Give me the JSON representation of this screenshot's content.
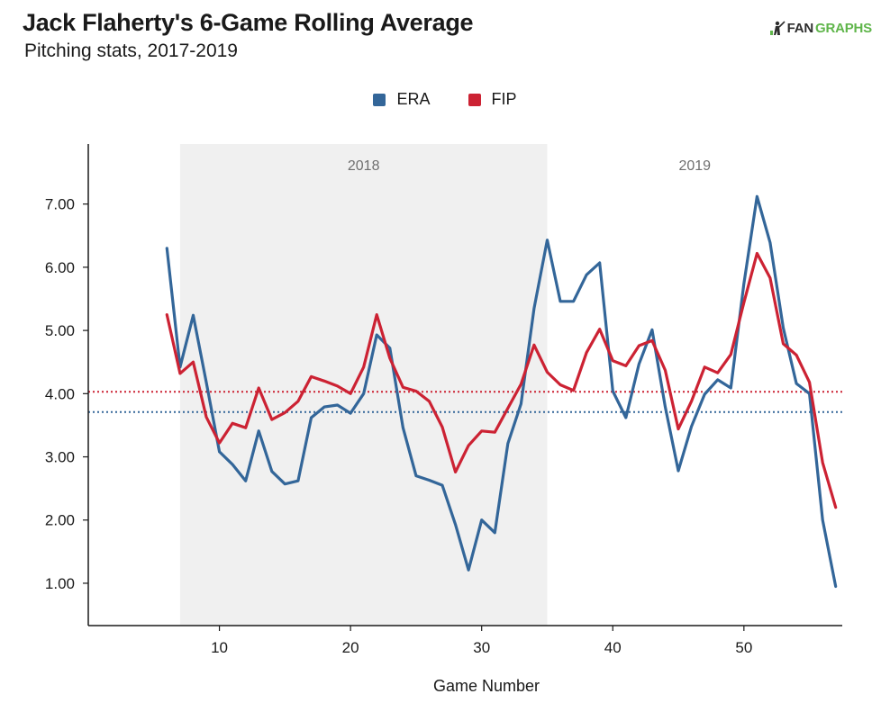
{
  "header": {
    "title": "Jack Flaherty's 6-Game Rolling Average",
    "subtitle": "Pitching stats, 2017-2019",
    "brand_prefix": "FAN",
    "brand_suffix": "GRAPHS"
  },
  "chart_data": {
    "type": "line",
    "title": "Jack Flaherty's 6-Game Rolling Average",
    "subtitle": "Pitching stats, 2017-2019",
    "xlabel": "Game Number",
    "ylabel": "",
    "xlim": [
      0,
      57.5
    ],
    "ylim": [
      0.33,
      7.95
    ],
    "xticks": [
      10,
      20,
      30,
      40,
      50
    ],
    "yticks": [
      1,
      2,
      3,
      4,
      5,
      6,
      7
    ],
    "ytick_labels": [
      "1.00",
      "2.00",
      "3.00",
      "4.00",
      "5.00",
      "6.00",
      "7.00"
    ],
    "legend_position": "top-center",
    "grid": false,
    "bands": [
      {
        "label": "2018",
        "x_start": 7,
        "x_end": 35,
        "shaded": true
      },
      {
        "label": "2019",
        "x_start": 35,
        "x_end": 57.5,
        "shaded": false
      }
    ],
    "reference_lines": [
      {
        "series": "ERA",
        "y": 3.71,
        "style": "dotted"
      },
      {
        "series": "FIP",
        "y": 4.03,
        "style": "dotted"
      }
    ],
    "x": [
      6,
      7,
      8,
      9,
      10,
      11,
      12,
      13,
      14,
      15,
      16,
      17,
      18,
      19,
      20,
      21,
      22,
      23,
      24,
      25,
      26,
      27,
      28,
      29,
      30,
      31,
      32,
      33,
      34,
      35,
      36,
      37,
      38,
      39,
      40,
      41,
      42,
      43,
      44,
      45,
      46,
      47,
      48,
      49,
      50,
      51,
      52,
      53,
      54,
      55,
      56,
      57
    ],
    "series": [
      {
        "name": "ERA",
        "color": "#336699",
        "values": [
          6.3,
          4.42,
          5.24,
          4.18,
          3.08,
          2.88,
          2.62,
          3.41,
          2.77,
          2.57,
          2.62,
          3.62,
          3.79,
          3.82,
          3.69,
          4.0,
          4.93,
          4.72,
          3.46,
          2.7,
          2.63,
          2.55,
          1.93,
          1.21,
          2.0,
          1.8,
          3.21,
          3.84,
          5.35,
          6.43,
          5.46,
          5.46,
          5.88,
          6.07,
          4.04,
          3.62,
          4.47,
          5.01,
          3.79,
          2.78,
          3.48,
          3.99,
          4.22,
          4.09,
          5.74,
          7.12,
          6.39,
          5.04,
          4.16,
          4.0,
          2.0,
          0.95
        ]
      },
      {
        "name": "FIP",
        "color": "#cc2233",
        "values": [
          5.25,
          4.32,
          4.5,
          3.63,
          3.22,
          3.53,
          3.46,
          4.09,
          3.59,
          3.7,
          3.88,
          4.27,
          4.2,
          4.12,
          4.0,
          4.42,
          5.25,
          4.56,
          4.1,
          4.04,
          3.88,
          3.47,
          2.76,
          3.18,
          3.41,
          3.39,
          3.77,
          4.15,
          4.77,
          4.34,
          4.14,
          4.05,
          4.65,
          5.02,
          4.52,
          4.44,
          4.76,
          4.84,
          4.37,
          3.44,
          3.88,
          4.42,
          4.33,
          4.62,
          5.44,
          6.22,
          5.83,
          4.79,
          4.61,
          4.18,
          2.91,
          2.2
        ]
      }
    ]
  }
}
